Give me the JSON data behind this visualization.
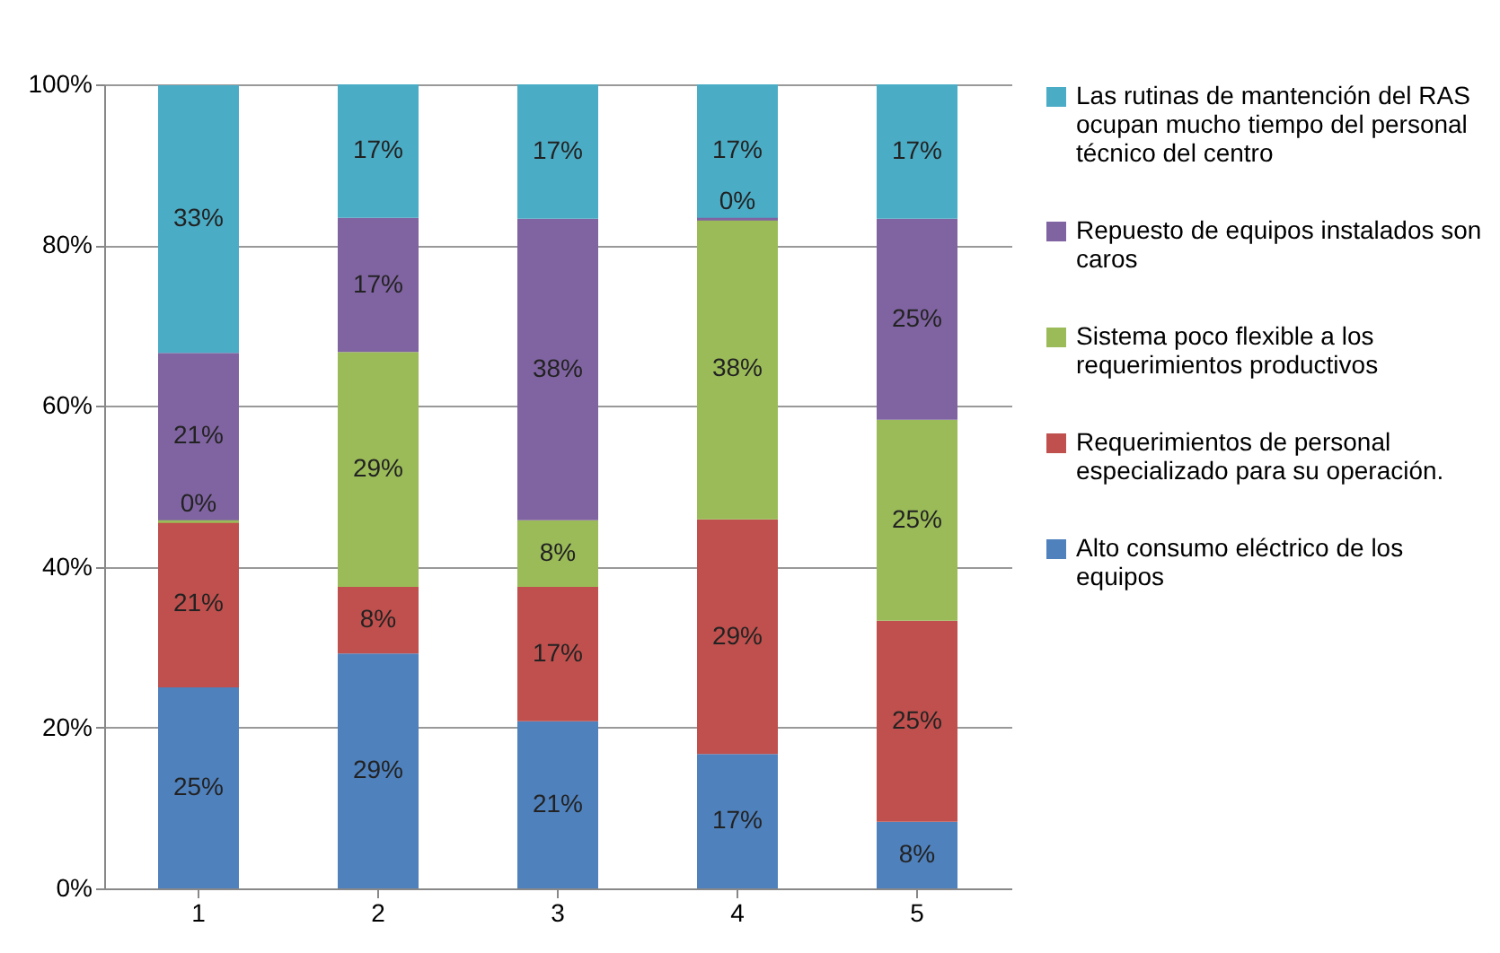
{
  "chart_data": {
    "type": "bar",
    "stacked": true,
    "categories": [
      "1",
      "2",
      "3",
      "4",
      "5"
    ],
    "series": [
      {
        "name": "Alto consumo eléctrico de los equipos",
        "color": "#4f81bd",
        "values": [
          25,
          29.2,
          20.8,
          16.7,
          8.3
        ],
        "value_labels": [
          "25%",
          "29%",
          "21%",
          "17%",
          "8%"
        ]
      },
      {
        "name": "Requerimientos de personal especializado para su operación.",
        "color": "#c0504d",
        "values": [
          20.8,
          8.3,
          16.7,
          29.2,
          25
        ],
        "value_labels": [
          "21%",
          "8%",
          "17%",
          "29%",
          "25%"
        ]
      },
      {
        "name": "Sistema poco flexible a los requerimientos productivos",
        "color": "#9bbb59",
        "values": [
          0,
          29.2,
          8.3,
          37.5,
          25
        ],
        "value_labels": [
          "0%",
          "29%",
          "8%",
          "38%",
          "25%"
        ]
      },
      {
        "name": "Repuesto de equipos instalados son caros",
        "color": "#8064a2",
        "values": [
          20.8,
          16.7,
          37.5,
          0,
          25
        ],
        "value_labels": [
          "21%",
          "17%",
          "38%",
          "0%",
          "25%"
        ]
      },
      {
        "name": "Las rutinas de mantención del RAS ocupan mucho tiempo del personal técnico del centro",
        "color": "#4bacc6",
        "values": [
          33.3,
          16.6,
          16.7,
          16.6,
          16.7
        ],
        "value_labels": [
          "33%",
          "17%",
          "17%",
          "17%",
          "17%"
        ]
      }
    ],
    "ylim": [
      0,
      100
    ],
    "yticks": [
      {
        "value": 0,
        "label": "0%"
      },
      {
        "value": 20,
        "label": "20%"
      },
      {
        "value": 40,
        "label": "40%"
      },
      {
        "value": 60,
        "label": "60%"
      },
      {
        "value": 80,
        "label": "80%"
      },
      {
        "value": 100,
        "label": "100%"
      }
    ],
    "grid": "y",
    "legend": "right"
  }
}
